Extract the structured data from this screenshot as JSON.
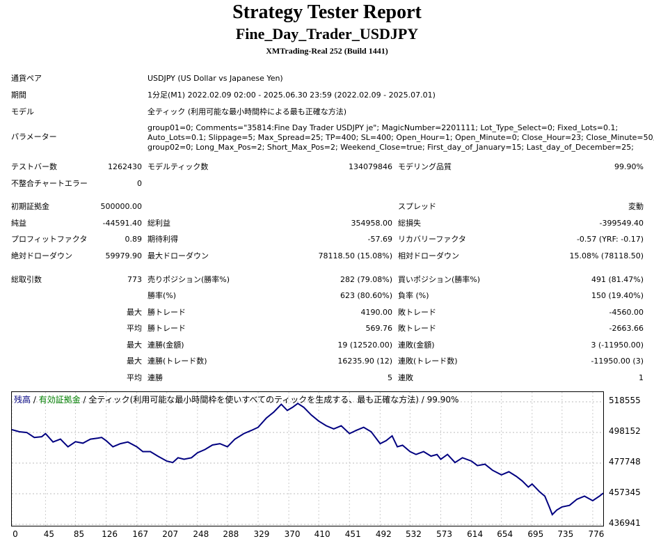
{
  "header": {
    "title": "Strategy Tester Report",
    "ea_name": "Fine_Day_Trader_USDJPY",
    "server": "XMTrading-Real 252 (Build 1441)"
  },
  "info": {
    "symbol_label": "通貨ペア",
    "symbol_value": "USDJPY (US Dollar vs Japanese Yen)",
    "period_label": "期間",
    "period_value": "1分足(M1) 2022.02.09 02:00 - 2025.06.30 23:59 (2022.02.09 - 2025.07.01)",
    "model_label": "モデル",
    "model_value": "全ティック (利用可能な最小時間枠による最も正確な方法)",
    "params_label": "パラメーター",
    "params_lines": [
      "group01=0; Comments=\"35814:Fine Day Trader USDJPY je\"; MagicNumber=2201111; Lot_Type_Select=0; Fixed_Lots=0.1;",
      "Auto_Lots=0.1; Slippage=5; Max_Spread=25; TP=400; SL=400; Open_Hour=1; Open_Minute=0; Close_Hour=23; Close_Minute=50;",
      "group02=0; Long_Max_Pos=2; Short_Max_Pos=2; Weekend_Close=true; First_day_of_January=15; Last_day_of_December=25;"
    ]
  },
  "stats": {
    "bars_label": "テストバー数",
    "bars_value": "1262430",
    "ticks_label": "モデルティック数",
    "ticks_value": "134079846",
    "quality_label": "モデリング品質",
    "quality_value": "99.90%",
    "mismatch_label": "不整合チャートエラー",
    "mismatch_value": "0",
    "deposit_label": "初期証拠金",
    "deposit_value": "500000.00",
    "spread_label": "スプレッド",
    "spread_value": "変動",
    "net_label": "純益",
    "net_value": "-44591.40",
    "gross_profit_label": "総利益",
    "gross_profit_value": "354958.00",
    "gross_loss_label": "総損失",
    "gross_loss_value": "-399549.40",
    "pf_label": "プロフィットファクタ",
    "pf_value": "0.89",
    "expected_label": "期待利得",
    "expected_value": "-57.69",
    "recovery_label": "リカバリーファクタ",
    "recovery_value": "-0.57 (YRF: -0.17)",
    "abs_dd_label": "絶対ドローダウン",
    "abs_dd_value": "59979.90",
    "max_dd_label": "最大ドローダウン",
    "max_dd_value": "78118.50 (15.08%)",
    "rel_dd_label": "相対ドローダウン",
    "rel_dd_value": "15.08% (78118.50)",
    "trades_label": "総取引数",
    "trades_value": "773",
    "short_label": "売りポジション(勝率%)",
    "short_value": "282 (79.08%)",
    "long_label": "買いポジション(勝率%)",
    "long_value": "491 (81.47%)",
    "win_label": "勝率(%)",
    "win_value": "623 (80.60%)",
    "loss_label": "負率 (%)",
    "loss_value": "150 (19.40%)",
    "max_word": "最大",
    "avg_word": "平均",
    "max_win_label": "勝トレード",
    "max_win_value": "4190.00",
    "max_loss_label": "敗トレード",
    "max_loss_value": "-4560.00",
    "avg_win_label": "勝トレード",
    "avg_win_value": "569.76",
    "avg_loss_label": "敗トレード",
    "avg_loss_value": "-2663.66",
    "consec_wins_money_label": "連勝(金額)",
    "consec_wins_money_value": "19 (12520.00)",
    "consec_loss_money_label": "連敗(金額)",
    "consec_loss_money_value": "3 (-11950.00)",
    "consec_wins_count_label": "連勝(トレード数)",
    "consec_wins_count_value": "16235.90 (12)",
    "consec_loss_count_label": "連敗(トレード数)",
    "consec_loss_count_value": "-11950.00 (3)",
    "avg_consec_wins_label": "連勝",
    "avg_consec_wins_value": "5",
    "avg_consec_loss_label": "連敗",
    "avg_consec_loss_value": "1"
  },
  "chart_caption": {
    "balance": "残高",
    "sep1": " / ",
    "equity": "有効証拠金",
    "rest": " / 全ティック(利用可能な最小時間枠を使いすべてのティックを生成する、最も正確な方法) / 99.90%"
  },
  "colors": {
    "balance": "#000080",
    "equity": "#008000"
  },
  "chart_data": {
    "type": "line",
    "x_ticks": [
      "0",
      "45",
      "85",
      "126",
      "167",
      "207",
      "248",
      "288",
      "329",
      "370",
      "410",
      "451",
      "492",
      "532",
      "573",
      "614",
      "654",
      "695",
      "735",
      "776"
    ],
    "y_ticks": [
      "518555",
      "498152",
      "477748",
      "457345",
      "436941"
    ],
    "ylim": [
      436941,
      518555
    ],
    "xlim": [
      0,
      790
    ],
    "series": [
      {
        "name": "残高",
        "points": [
          [
            0,
            500000
          ],
          [
            10,
            498600
          ],
          [
            20,
            498100
          ],
          [
            30,
            494800
          ],
          [
            40,
            495300
          ],
          [
            45,
            497400
          ],
          [
            55,
            491800
          ],
          [
            65,
            493700
          ],
          [
            75,
            488600
          ],
          [
            85,
            492000
          ],
          [
            95,
            491000
          ],
          [
            105,
            493700
          ],
          [
            115,
            494400
          ],
          [
            120,
            494800
          ],
          [
            126,
            492700
          ],
          [
            135,
            488600
          ],
          [
            145,
            490700
          ],
          [
            155,
            491800
          ],
          [
            167,
            488600
          ],
          [
            175,
            485400
          ],
          [
            185,
            485400
          ],
          [
            195,
            482400
          ],
          [
            207,
            479100
          ],
          [
            215,
            478100
          ],
          [
            222,
            481300
          ],
          [
            230,
            480300
          ],
          [
            240,
            481300
          ],
          [
            248,
            484600
          ],
          [
            258,
            486800
          ],
          [
            268,
            489800
          ],
          [
            278,
            490700
          ],
          [
            288,
            488600
          ],
          [
            298,
            493700
          ],
          [
            310,
            497400
          ],
          [
            320,
            499500
          ],
          [
            329,
            501600
          ],
          [
            340,
            507700
          ],
          [
            350,
            511800
          ],
          [
            360,
            516900
          ],
          [
            368,
            512800
          ],
          [
            375,
            514900
          ],
          [
            382,
            517500
          ],
          [
            390,
            514900
          ],
          [
            400,
            509800
          ],
          [
            410,
            505700
          ],
          [
            420,
            502600
          ],
          [
            430,
            500500
          ],
          [
            440,
            502600
          ],
          [
            451,
            497400
          ],
          [
            460,
            499500
          ],
          [
            470,
            501600
          ],
          [
            480,
            498600
          ],
          [
            492,
            490700
          ],
          [
            500,
            492700
          ],
          [
            508,
            495900
          ],
          [
            515,
            488600
          ],
          [
            522,
            489600
          ],
          [
            532,
            485400
          ],
          [
            540,
            483500
          ],
          [
            550,
            485400
          ],
          [
            560,
            482400
          ],
          [
            568,
            483500
          ],
          [
            573,
            480300
          ],
          [
            582,
            483500
          ],
          [
            592,
            478100
          ],
          [
            602,
            481300
          ],
          [
            614,
            479100
          ],
          [
            622,
            476100
          ],
          [
            632,
            477000
          ],
          [
            642,
            473000
          ],
          [
            654,
            469900
          ],
          [
            664,
            472000
          ],
          [
            674,
            468900
          ],
          [
            682,
            465800
          ],
          [
            690,
            461800
          ],
          [
            695,
            463800
          ],
          [
            705,
            458700
          ],
          [
            712,
            455700
          ],
          [
            718,
            448600
          ],
          [
            722,
            443500
          ],
          [
            728,
            446500
          ],
          [
            735,
            448600
          ],
          [
            745,
            449600
          ],
          [
            755,
            453700
          ],
          [
            765,
            455700
          ],
          [
            776,
            452700
          ],
          [
            785,
            455700
          ],
          [
            790,
            457700
          ]
        ]
      }
    ]
  }
}
